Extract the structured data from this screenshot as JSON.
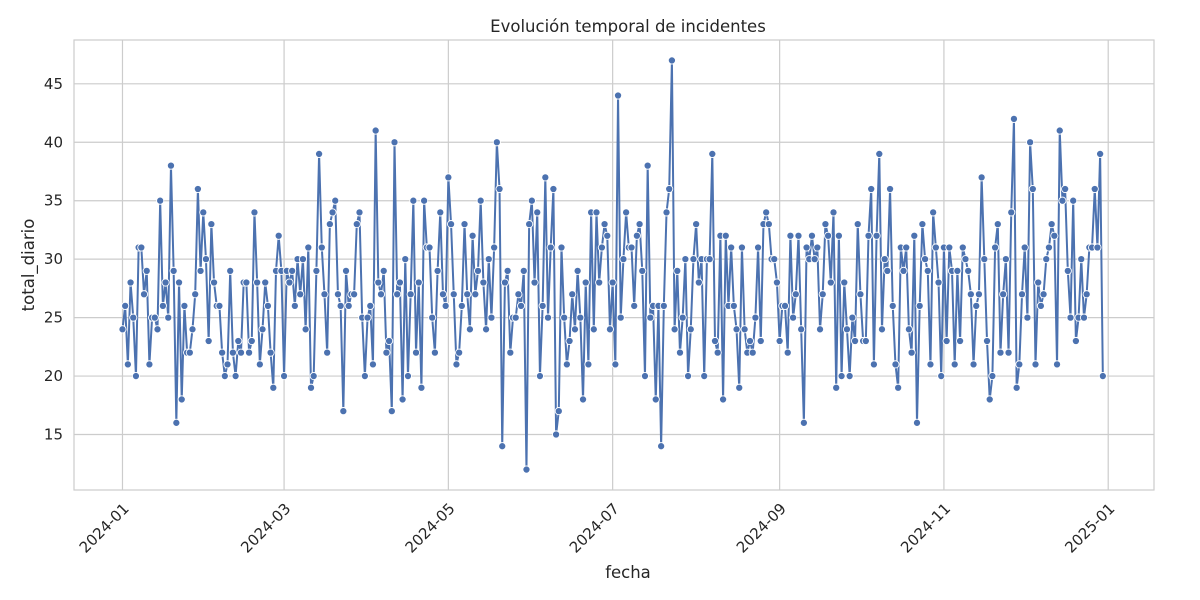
{
  "chart_data": {
    "type": "line",
    "title": "Evolución temporal de incidentes",
    "xlabel": "fecha",
    "ylabel": "total_diario",
    "x_ticks": [
      "2024-01",
      "2024-03",
      "2024-05",
      "2024-07",
      "2024-09",
      "2024-11",
      "2025-01"
    ],
    "y_ticks": [
      15,
      20,
      25,
      30,
      35,
      40,
      45
    ],
    "ylim": [
      10.25,
      48.75
    ],
    "xlim": [
      "2023-12-14",
      "2025-01-18"
    ],
    "grid": true,
    "marker": "circle",
    "colors": {
      "line": "#4c72b0",
      "grid": "#cccccc",
      "background": "#ffffff",
      "text": "#262626"
    },
    "x_start": "2024-01-01",
    "x_step_days": 1,
    "values": [
      24,
      26,
      21,
      28,
      25,
      20,
      31,
      31,
      27,
      29,
      21,
      25,
      25,
      24,
      35,
      26,
      28,
      25,
      38,
      29,
      16,
      28,
      18,
      26,
      22,
      22,
      24,
      27,
      36,
      29,
      34,
      30,
      23,
      33,
      28,
      26,
      26,
      22,
      20,
      21,
      29,
      22,
      20,
      23,
      22,
      28,
      28,
      22,
      23,
      34,
      28,
      21,
      24,
      28,
      26,
      22,
      19,
      29,
      32,
      29,
      20,
      29,
      28,
      29,
      26,
      30,
      27,
      30,
      24,
      31,
      19,
      20,
      29,
      39,
      31,
      27,
      22,
      33,
      34,
      35,
      27,
      26,
      17,
      29,
      26,
      27,
      27,
      33,
      34,
      25,
      20,
      25,
      26,
      21,
      41,
      28,
      27,
      29,
      22,
      23,
      17,
      40,
      27,
      28,
      18,
      30,
      20,
      27,
      35,
      22,
      28,
      19,
      35,
      31,
      31,
      25,
      22,
      29,
      34,
      27,
      26,
      37,
      33,
      27,
      21,
      22,
      26,
      33,
      27,
      24,
      32,
      27,
      29,
      35,
      28,
      24,
      30,
      25,
      31,
      40,
      36,
      14,
      28,
      29,
      22,
      25,
      25,
      27,
      26,
      29,
      12,
      33,
      35,
      28,
      34,
      20,
      26,
      37,
      25,
      31,
      36,
      15,
      17,
      31,
      25,
      21,
      23,
      27,
      24,
      29,
      25,
      18,
      28,
      21,
      34,
      24,
      34,
      28,
      31,
      33,
      32,
      24,
      28,
      21,
      44,
      25,
      30,
      34,
      31,
      31,
      26,
      32,
      33,
      29,
      20,
      38,
      25,
      26,
      18,
      26,
      14,
      26,
      34,
      36,
      47,
      24,
      29,
      22,
      25,
      30,
      20,
      24,
      30,
      33,
      28,
      30,
      20,
      30,
      30,
      39,
      23,
      22,
      32,
      18,
      32,
      26,
      31,
      26,
      24,
      19,
      31,
      24,
      22,
      23,
      22,
      25,
      31,
      23,
      33,
      34,
      33,
      30,
      30,
      28,
      23,
      26,
      26,
      22,
      32,
      25,
      27,
      32,
      24,
      16,
      31,
      30,
      32,
      30,
      31,
      24,
      27,
      33,
      32,
      28,
      34,
      19,
      32,
      20,
      28,
      24,
      20,
      25,
      23,
      33,
      27,
      23,
      23,
      32,
      36,
      21,
      32,
      39,
      24,
      30,
      29,
      36,
      26,
      21,
      19,
      31,
      29,
      31,
      24,
      22,
      32,
      16,
      26,
      33,
      30,
      29,
      21,
      34,
      31,
      28,
      20,
      31,
      23,
      31,
      29,
      21,
      29,
      23,
      31,
      30,
      29,
      27,
      21,
      26,
      27,
      37,
      30,
      23,
      18,
      20,
      31,
      33,
      22,
      27,
      30,
      22,
      34,
      42,
      19,
      21,
      27,
      31,
      25,
      40,
      36,
      21,
      28,
      26,
      27,
      30,
      31,
      33,
      32,
      21,
      41,
      35,
      36,
      29,
      25,
      35,
      23,
      25,
      30,
      25,
      27,
      31,
      31,
      36,
      31,
      39,
      20
    ]
  }
}
